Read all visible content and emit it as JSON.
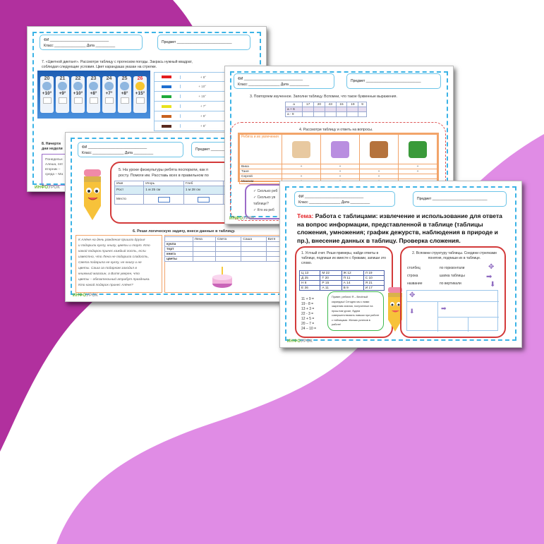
{
  "colors": {
    "magenta": "#b1309e",
    "lavender": "#e08ce5",
    "frame": "#3bb3e6",
    "red": "#d33a3a",
    "orange": "#f2a46a"
  },
  "common": {
    "fio": "ФИ ______________________________",
    "klass": "Класс ________________",
    "data": "Дата __________",
    "predmet": "Предмет ____________________________",
    "logo_a": "ИНФО",
    "logo_b": "УРОК"
  },
  "page_a": {
    "task7": "7. «Цветной диктант». Рассмотри таблицу с прогнозом погоды. Закрась нужный квадрат,",
    "task7b": "соблюдая следующие условия. Цвет карандаша указан на стрелке.",
    "days": [
      "20",
      "21",
      "22",
      "23",
      "24",
      "25",
      "26"
    ],
    "temps": [
      "+10°",
      "+9°",
      "+10°",
      "+8°",
      "+7°",
      "+8°",
      "+15°"
    ],
    "arrows": [
      {
        "color": "#e31e1e",
        "value": "+ 8°"
      },
      {
        "color": "#1e6fd0",
        "value": "+ 10°"
      },
      {
        "color": "#1faa3a",
        "value": "+ 15°"
      },
      {
        "color": "#e8e21e",
        "value": "+ 7°"
      },
      {
        "color": "#c8621e",
        "value": "+ 9°"
      },
      {
        "color": "#5a2a1e",
        "value": "+ 8°"
      }
    ],
    "task8": "8. Начерти",
    "task8b": "дни недели",
    "box_lines": [
      "Понедельн",
      "Алеша, пят",
      "вторник –",
      "среда – Ма"
    ]
  },
  "page_b": {
    "task5": "5. На уроке физкультуры ребята поспорили, как п",
    "task5b": "росту. Помоги им. Расставь всех в правильном по",
    "table_head": [
      "Имя",
      "Игорь",
      "Глеб",
      "Ирина",
      "Зоя"
    ],
    "row_height": [
      "Рост",
      "1 м 25 см",
      "1 м 28 см",
      "1 м 22 см",
      "1 м"
    ],
    "row_place": "Место",
    "task6": "6. Реши логическую задачу, внеси данные в таблицу.",
    "story": [
      "К Алёне на день рождения пришли друзья",
      "и подарили куклу, книгу, цветы и торт. Кто",
      "какой подарок принес каждый гость, если",
      "известно, что Лена не подарила сладость,",
      "Света подарила не куклу, не книгу и не",
      "цветы. Саша за подарком заходил в",
      "книжный магазин, а Витя уверен, что",
      "цветы – обязательный атрибут праздника.",
      "Кто какой подарок принес Алёне?"
    ],
    "gift_cols": [
      "",
      "Лена",
      "Света",
      "Саша",
      "Витя"
    ],
    "gift_rows": [
      "кукла",
      "торт",
      "книга",
      "цветы"
    ]
  },
  "page_c": {
    "task3": "3. Повторяем изученное. Заполни таблицу. Вспомни, что такое буквенные выражения.",
    "a_row": [
      "a",
      "17",
      "20",
      "43",
      "15",
      "19",
      "9"
    ],
    "expr_rows": [
      "a + 6",
      "a - 9"
    ],
    "task4": "4. Рассмотри таблицу и ответь на вопросы.",
    "hobby_head": "Ребята и их увлечения",
    "hobby_icons": [
      "book-icon",
      "computer-icon",
      "dog-icon",
      "flower-icon"
    ],
    "children": [
      {
        "name": "Вика",
        "marks": [
          "+",
          "+",
          "",
          "+"
        ]
      },
      {
        "name": "Таня",
        "marks": [
          "",
          "+",
          "+",
          "+"
        ]
      },
      {
        "name": "Сергей",
        "marks": [
          "+",
          "+",
          "+",
          ""
        ]
      },
      {
        "name": "Максим",
        "marks": [
          "+",
          "+",
          "+",
          ""
        ]
      }
    ],
    "questions": [
      "✓ Сколько реб",
      "✓ Сколько ув",
      "таблице?",
      "✓ Кто из реб"
    ]
  },
  "page_d": {
    "tema_label": "Тема:",
    "tema": "Работа с таблицами: извлечение и использование для ответа на вопрос информации, представленной в таблице (таблицы сложения, умножения; график дежурств, наблюдения в природе и пр.), внесение данных в таблицу. Проверка сложения.",
    "task1": "1. Устный счет. Реши примеры, найди ответы в таблице, подпиши их вместе с буквами, запиши это слово.",
    "letters": [
      [
        "Ц 13",
        "М 22",
        "Ж 12",
        "Л 19"
      ],
      [
        "Д 25",
        "Т 20",
        "П 11",
        "С 10"
      ],
      [
        "Н 8",
        "Р 15",
        "А 14",
        "Я 21"
      ],
      [
        "Е 36",
        "А 11",
        "В 9",
        "И 17"
      ]
    ],
    "examples": [
      "11 + 9 =",
      "19 - 8 =",
      "13 + 3 =",
      "22 - 3 =",
      "12 + 5 =",
      "20 – 7 =",
      "24 – 10 ="
    ],
    "bubble": "Привет, ребята! Я – Весёлый карандаш! Сегодня мы с вами закрепим знания, полученные на прошлом уроке, будем совершенствовать навыки при работе с таблицами. Желаю успехов в работе!",
    "task2": "2. Вспомни структуру таблицы. Соедини стрелками понятия, подпиши их в таблице.",
    "terms_left": [
      "столбец",
      "строка",
      "название"
    ],
    "terms_right": [
      "по горизонтали",
      "шапка таблицы",
      "по вертикали"
    ]
  }
}
